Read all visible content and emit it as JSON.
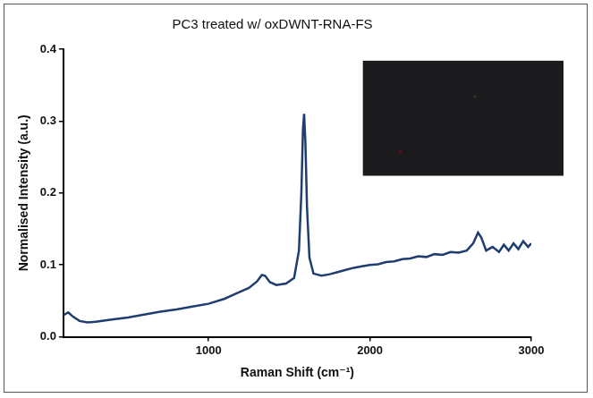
{
  "chart_data": {
    "type": "line",
    "title": "PC3 treated w/ oxDWNT-RNA-FS",
    "x_label": "Raman Shift (cm⁻¹)",
    "y_label": "Normalised Intensity (a.u.)",
    "color": "#1f3d6e",
    "grid": false,
    "xlim": [
      100,
      3000
    ],
    "xticks": [
      1000,
      2000,
      3000
    ],
    "ylim": [
      0,
      0.4
    ],
    "yticks": [
      {
        "value": 0,
        "label": "0.0"
      },
      0.1,
      0.2,
      0.3,
      0.4
    ],
    "x": [
      100,
      130,
      160,
      200,
      250,
      300,
      400,
      500,
      600,
      700,
      800,
      900,
      1000,
      1100,
      1150,
      1200,
      1250,
      1300,
      1330,
      1350,
      1380,
      1420,
      1480,
      1530,
      1560,
      1575,
      1585,
      1592,
      1600,
      1610,
      1625,
      1650,
      1700,
      1750,
      1800,
      1850,
      1900,
      1950,
      2000,
      2050,
      2100,
      2150,
      2200,
      2250,
      2300,
      2350,
      2400,
      2450,
      2500,
      2550,
      2600,
      2640,
      2670,
      2690,
      2720,
      2760,
      2800,
      2830,
      2860,
      2890,
      2920,
      2950,
      2980,
      3000
    ],
    "values": [
      0.03,
      0.034,
      0.028,
      0.022,
      0.02,
      0.021,
      0.024,
      0.027,
      0.031,
      0.035,
      0.038,
      0.042,
      0.046,
      0.053,
      0.058,
      0.063,
      0.068,
      0.077,
      0.086,
      0.085,
      0.076,
      0.072,
      0.074,
      0.082,
      0.12,
      0.2,
      0.29,
      0.31,
      0.27,
      0.18,
      0.11,
      0.088,
      0.085,
      0.087,
      0.09,
      0.093,
      0.096,
      0.098,
      0.1,
      0.101,
      0.104,
      0.105,
      0.108,
      0.109,
      0.112,
      0.111,
      0.115,
      0.114,
      0.118,
      0.117,
      0.12,
      0.13,
      0.145,
      0.138,
      0.12,
      0.125,
      0.118,
      0.128,
      0.12,
      0.13,
      0.122,
      0.133,
      0.125,
      0.13
    ]
  }
}
